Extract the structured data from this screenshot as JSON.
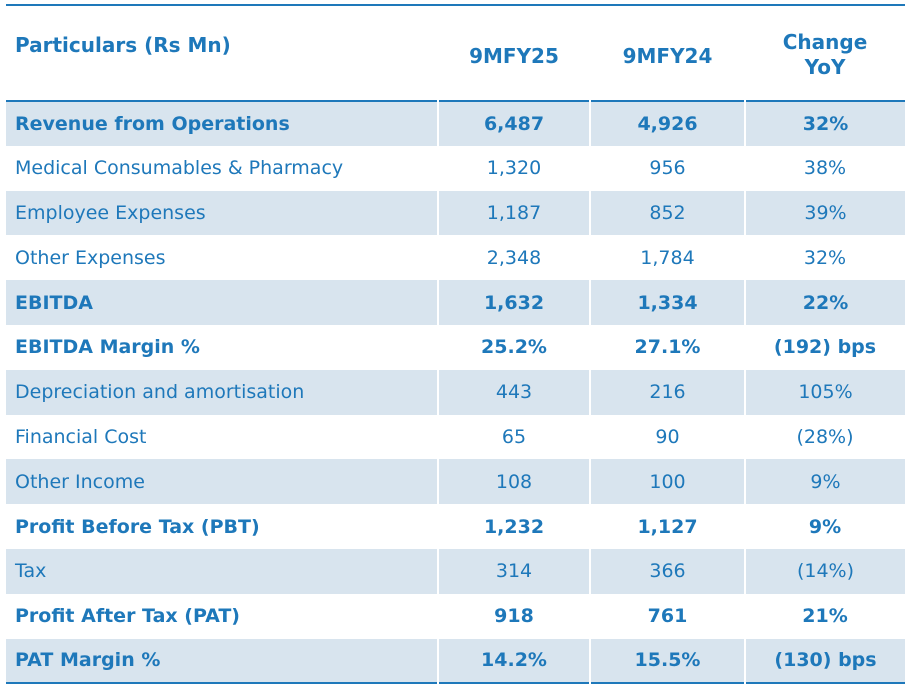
{
  "header": {
    "particulars": "Particulars (Rs Mn)",
    "col1": "9MFY25",
    "col2": "9MFY24",
    "col3_line1": "Change",
    "col3_line2": "YoY"
  },
  "rows": [
    {
      "label": "Revenue from Operations",
      "v1": "6,487",
      "v2": "4,926",
      "chg": "32%",
      "bold": true,
      "shade": true
    },
    {
      "label": "Medical Consumables & Pharmacy",
      "v1": "1,320",
      "v2": "956",
      "chg": "38%",
      "bold": false,
      "shade": false
    },
    {
      "label": "Employee Expenses",
      "v1": "1,187",
      "v2": "852",
      "chg": "39%",
      "bold": false,
      "shade": true
    },
    {
      "label": "Other Expenses",
      "v1": "2,348",
      "v2": "1,784",
      "chg": "32%",
      "bold": false,
      "shade": false
    },
    {
      "label": "EBITDA",
      "v1": "1,632",
      "v2": "1,334",
      "chg": "22%",
      "bold": true,
      "shade": true
    },
    {
      "label": "EBITDA Margin %",
      "v1": "25.2%",
      "v2": "27.1%",
      "chg": "(192) bps",
      "bold": true,
      "shade": false
    },
    {
      "label": "Depreciation and amortisation",
      "v1": "443",
      "v2": "216",
      "chg": "105%",
      "bold": false,
      "shade": true
    },
    {
      "label": "Financial Cost",
      "v1": "65",
      "v2": "90",
      "chg": "(28%)",
      "bold": false,
      "shade": false
    },
    {
      "label": "Other Income",
      "v1": "108",
      "v2": "100",
      "chg": "9%",
      "bold": false,
      "shade": true
    },
    {
      "label": "Profit Before Tax (PBT)",
      "v1": "1,232",
      "v2": "1,127",
      "chg": "9%",
      "bold": true,
      "shade": false
    },
    {
      "label": "Tax",
      "v1": "314",
      "v2": "366",
      "chg": "(14%)",
      "bold": false,
      "shade": true
    },
    {
      "label": "Profit After Tax (PAT)",
      "v1": "918",
      "v2": "761",
      "chg": "21%",
      "bold": true,
      "shade": false
    },
    {
      "label": "PAT Margin %",
      "v1": "14.2%",
      "v2": "15.5%",
      "chg": "(130) bps",
      "bold": true,
      "shade": true
    }
  ],
  "colors": {
    "text": "#1e78ba",
    "shade": "#d8e4ee"
  }
}
